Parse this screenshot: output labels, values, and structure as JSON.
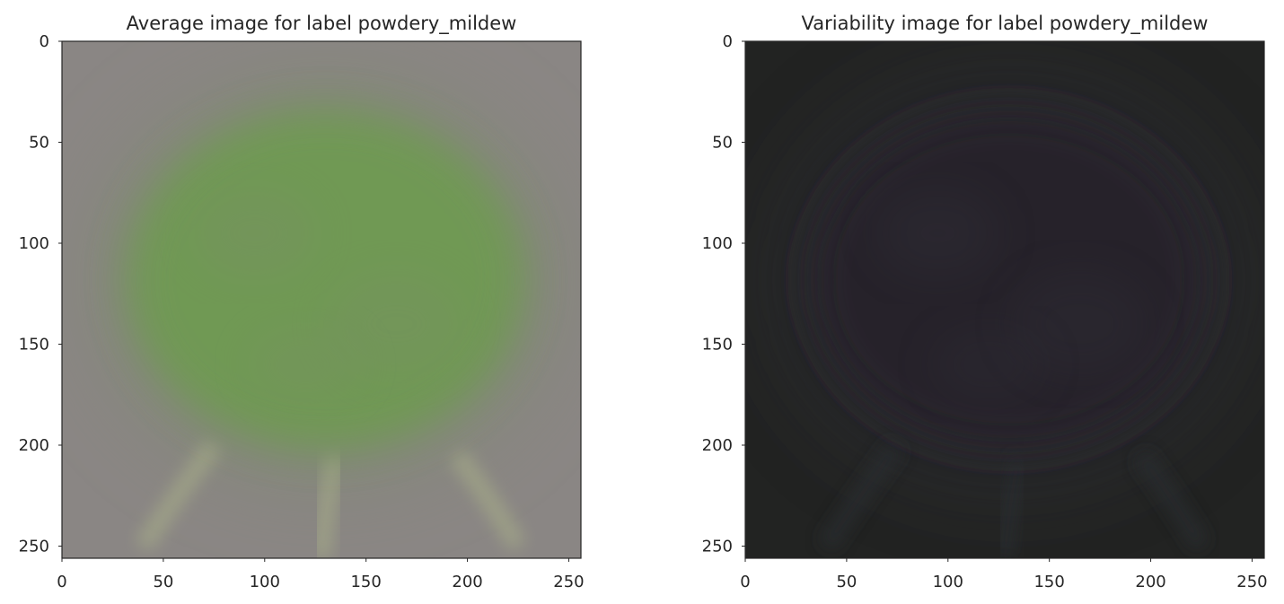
{
  "chart_data": [
    {
      "type": "heatmap",
      "image_kind": "rgb",
      "title": "Average image for label powdery_mildew",
      "xlabel": "",
      "ylabel": "",
      "xlim": [
        0,
        255
      ],
      "ylim": [
        255,
        0
      ],
      "xticks": [
        0,
        50,
        100,
        150,
        200,
        250
      ],
      "yticks": [
        0,
        50,
        100,
        150,
        200,
        250
      ],
      "grid": false,
      "colors": {
        "background": "#8a8684",
        "leaf": "#6f9a52",
        "leaf_edge": "#7d8a6c",
        "stem": "#a5aa88"
      }
    },
    {
      "type": "heatmap",
      "image_kind": "rgb",
      "title": "Variability image for label powdery_mildew",
      "xlabel": "",
      "ylabel": "",
      "xlim": [
        0,
        255
      ],
      "ylim": [
        255,
        0
      ],
      "xticks": [
        0,
        50,
        100,
        150,
        200,
        250
      ],
      "yticks": [
        0,
        50,
        100,
        150,
        200,
        250
      ],
      "grid": false,
      "colors": {
        "background": "#222322",
        "leaf": "#25202c",
        "leaf_edge": "#35353c",
        "stem": "#2c2d30"
      }
    }
  ]
}
